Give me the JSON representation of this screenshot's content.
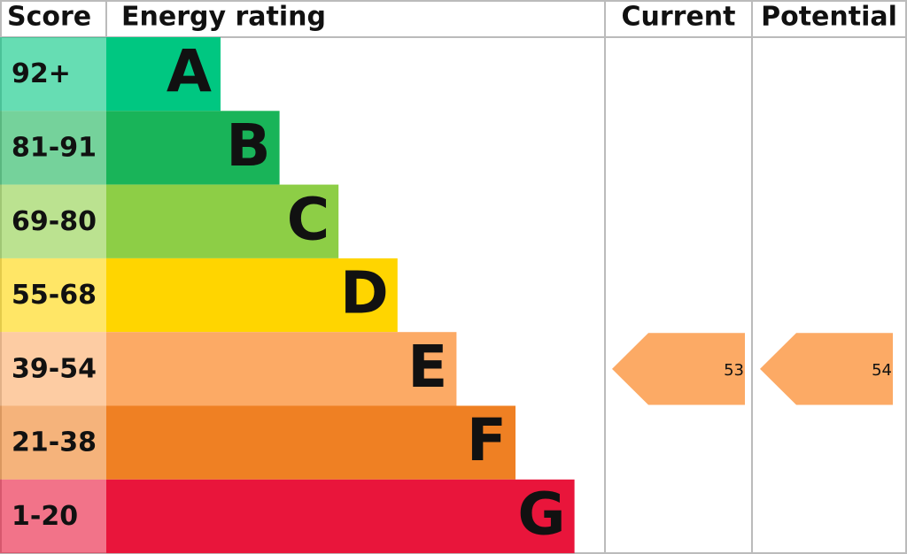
{
  "header": {
    "score": "Score",
    "rating": "Energy rating",
    "current": "Current",
    "potential": "Potential"
  },
  "bands": [
    {
      "score": "92+",
      "letter": "A",
      "color": "#00c781"
    },
    {
      "score": "81-91",
      "letter": "B",
      "color": "#19b459"
    },
    {
      "score": "69-80",
      "letter": "C",
      "color": "#8dce46"
    },
    {
      "score": "55-68",
      "letter": "D",
      "color": "#ffd500"
    },
    {
      "score": "39-54",
      "letter": "E",
      "color": "#fcaa65"
    },
    {
      "score": "21-38",
      "letter": "F",
      "color": "#ef8023"
    },
    {
      "score": "1-20",
      "letter": "G",
      "color": "#e9153b"
    }
  ],
  "current": 53,
  "potential": 54
}
